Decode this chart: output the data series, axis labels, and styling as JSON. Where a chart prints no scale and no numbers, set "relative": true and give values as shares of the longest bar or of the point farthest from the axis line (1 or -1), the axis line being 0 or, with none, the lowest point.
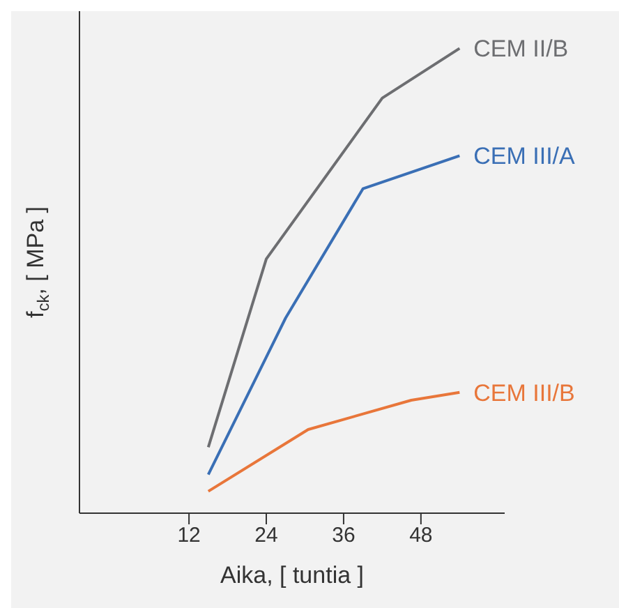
{
  "chart_data": {
    "type": "line",
    "relative": true,
    "xlabel": "Aika, [ tuntia ]",
    "ylabel": "f$_{ck}$, [ MPa ]",
    "xlim": [
      -5,
      61
    ],
    "xticks": [
      12,
      24,
      36,
      48
    ],
    "marker": "none",
    "line_style": "solid",
    "series": [
      {
        "name": "CEM II/B",
        "color": "#6d6e71",
        "x": [
          15,
          24,
          42,
          54
        ],
        "values": [
          0.142,
          0.547,
          0.893,
          1
        ]
      },
      {
        "name": "CEM III/A",
        "color": "#3a6fb5",
        "x": [
          15,
          27,
          39,
          54
        ],
        "values": [
          0.083,
          0.42,
          0.698,
          0.769
        ]
      },
      {
        "name": "CEM III/B",
        "color": "#e8763a",
        "x": [
          15,
          30.5,
          46.5,
          54
        ],
        "values": [
          0.047,
          0.18,
          0.243,
          0.26
        ]
      }
    ]
  }
}
